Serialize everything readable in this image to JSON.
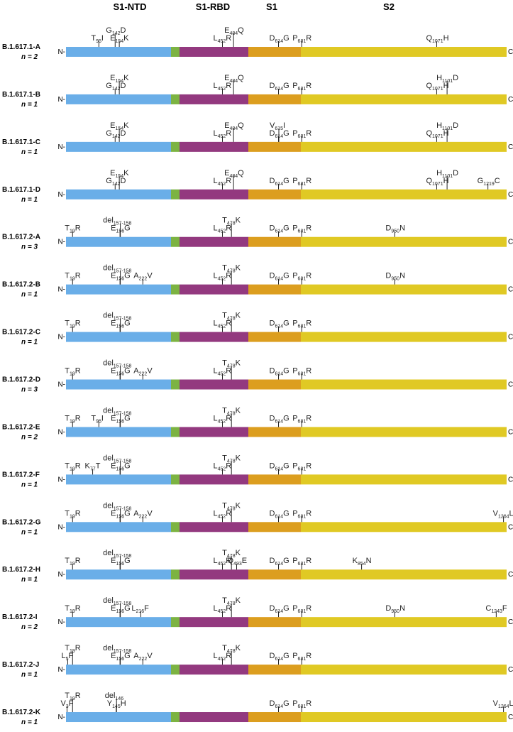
{
  "headers": [
    "S1-NTD",
    "S1-RBD",
    "S1",
    "S2"
  ],
  "ends": [
    "N-",
    "C"
  ],
  "rows": [
    {
      "name": "B.1.617.1-A",
      "n": "n = 2",
      "mutations": [
        {
          "from": "T",
          "pos": "95",
          "to": "I"
        },
        {
          "from": "G",
          "pos": "142",
          "to": "D"
        },
        {
          "from": "E",
          "pos": "154",
          "to": "K"
        },
        {
          "from": "L",
          "pos": "452",
          "to": "R"
        },
        {
          "from": "E",
          "pos": "484",
          "to": "Q"
        },
        {
          "from": "D",
          "pos": "614",
          "to": "G"
        },
        {
          "from": "P",
          "pos": "681",
          "to": "R"
        },
        {
          "from": "Q",
          "pos": "1071",
          "to": "H"
        }
      ]
    },
    {
      "name": "B.1.617.1-B",
      "n": "n = 1",
      "mutations": [
        {
          "from": "G",
          "pos": "142",
          "to": "D"
        },
        {
          "from": "E",
          "pos": "154",
          "to": "K"
        },
        {
          "from": "L",
          "pos": "452",
          "to": "R"
        },
        {
          "from": "E",
          "pos": "484",
          "to": "Q"
        },
        {
          "from": "D",
          "pos": "614",
          "to": "G"
        },
        {
          "from": "P",
          "pos": "681",
          "to": "R"
        },
        {
          "from": "Q",
          "pos": "1071",
          "to": "H"
        },
        {
          "from": "H",
          "pos": "1101",
          "to": "D"
        }
      ]
    },
    {
      "name": "B.1.617.1-C",
      "n": "n = 1",
      "mutations": [
        {
          "from": "G",
          "pos": "142",
          "to": "D"
        },
        {
          "from": "E",
          "pos": "154",
          "to": "K"
        },
        {
          "from": "L",
          "pos": "452",
          "to": "R"
        },
        {
          "from": "E",
          "pos": "484",
          "to": "Q"
        },
        {
          "from": "D",
          "pos": "614",
          "to": "G"
        },
        {
          "from": "V",
          "pos": "615",
          "to": "I"
        },
        {
          "from": "P",
          "pos": "681",
          "to": "R"
        },
        {
          "from": "Q",
          "pos": "1071",
          "to": "H"
        },
        {
          "from": "H",
          "pos": "1101",
          "to": "D"
        }
      ]
    },
    {
      "name": "B.1.617.1-D",
      "n": "n = 1",
      "mutations": [
        {
          "from": "G",
          "pos": "142",
          "to": "D"
        },
        {
          "from": "E",
          "pos": "154",
          "to": "K"
        },
        {
          "from": "L",
          "pos": "452",
          "to": "R"
        },
        {
          "from": "E",
          "pos": "484",
          "to": "Q"
        },
        {
          "from": "D",
          "pos": "614",
          "to": "G"
        },
        {
          "from": "P",
          "pos": "681",
          "to": "R"
        },
        {
          "from": "Q",
          "pos": "1071",
          "to": "H"
        },
        {
          "from": "H",
          "pos": "1101",
          "to": "D"
        },
        {
          "from": "G",
          "pos": "1219",
          "to": "C"
        }
      ]
    },
    {
      "name": "B.1.617.2-A",
      "n": "n = 3",
      "mutations": [
        {
          "from": "T",
          "pos": "19",
          "to": "R"
        },
        {
          "from": "E",
          "pos": "156",
          "to": "G"
        },
        {
          "from": "del",
          "pos": "157-158"
        },
        {
          "from": "L",
          "pos": "452",
          "to": "R"
        },
        {
          "from": "T",
          "pos": "478",
          "to": "K"
        },
        {
          "from": "D",
          "pos": "614",
          "to": "G"
        },
        {
          "from": "P",
          "pos": "681",
          "to": "R"
        },
        {
          "from": "D",
          "pos": "950",
          "to": "N"
        }
      ]
    },
    {
      "name": "B.1.617.2-B",
      "n": "n = 1",
      "mutations": [
        {
          "from": "T",
          "pos": "19",
          "to": "R"
        },
        {
          "from": "E",
          "pos": "156",
          "to": "G"
        },
        {
          "from": "del",
          "pos": "157-158"
        },
        {
          "from": "A",
          "pos": "222",
          "to": "V"
        },
        {
          "from": "L",
          "pos": "452",
          "to": "R"
        },
        {
          "from": "T",
          "pos": "478",
          "to": "K"
        },
        {
          "from": "D",
          "pos": "614",
          "to": "G"
        },
        {
          "from": "P",
          "pos": "681",
          "to": "R"
        },
        {
          "from": "D",
          "pos": "950",
          "to": "N"
        }
      ]
    },
    {
      "name": "B.1.617.2-C",
      "n": "n = 1",
      "mutations": [
        {
          "from": "T",
          "pos": "19",
          "to": "R"
        },
        {
          "from": "E",
          "pos": "156",
          "to": "G"
        },
        {
          "from": "del",
          "pos": "157-158"
        },
        {
          "from": "L",
          "pos": "452",
          "to": "R"
        },
        {
          "from": "T",
          "pos": "478",
          "to": "K"
        },
        {
          "from": "D",
          "pos": "614",
          "to": "G"
        },
        {
          "from": "P",
          "pos": "681",
          "to": "R"
        }
      ]
    },
    {
      "name": "B.1.617.2-D",
      "n": "n = 3",
      "mutations": [
        {
          "from": "T",
          "pos": "19",
          "to": "R"
        },
        {
          "from": "E",
          "pos": "156",
          "to": "G"
        },
        {
          "from": "del",
          "pos": "157-158"
        },
        {
          "from": "A",
          "pos": "222",
          "to": "V"
        },
        {
          "from": "L",
          "pos": "452",
          "to": "R"
        },
        {
          "from": "T",
          "pos": "478",
          "to": "K"
        },
        {
          "from": "D",
          "pos": "614",
          "to": "G"
        },
        {
          "from": "P",
          "pos": "681",
          "to": "R"
        }
      ]
    },
    {
      "name": "B.1.617.2-E",
      "n": "n = 2",
      "mutations": [
        {
          "from": "T",
          "pos": "19",
          "to": "R"
        },
        {
          "from": "T",
          "pos": "95",
          "to": "I"
        },
        {
          "from": "E",
          "pos": "156",
          "to": "G"
        },
        {
          "from": "del",
          "pos": "157-158"
        },
        {
          "from": "L",
          "pos": "452",
          "to": "R"
        },
        {
          "from": "T",
          "pos": "478",
          "to": "K"
        },
        {
          "from": "D",
          "pos": "614",
          "to": "G"
        },
        {
          "from": "P",
          "pos": "681",
          "to": "R"
        }
      ]
    },
    {
      "name": "B.1.617.2-F",
      "n": "n = 1",
      "mutations": [
        {
          "from": "T",
          "pos": "19",
          "to": "R"
        },
        {
          "from": "K",
          "pos": "77",
          "to": "T"
        },
        {
          "from": "E",
          "pos": "156",
          "to": "G"
        },
        {
          "from": "del",
          "pos": "157-158"
        },
        {
          "from": "L",
          "pos": "452",
          "to": "R"
        },
        {
          "from": "T",
          "pos": "478",
          "to": "K"
        },
        {
          "from": "D",
          "pos": "614",
          "to": "G"
        },
        {
          "from": "P",
          "pos": "681",
          "to": "R"
        }
      ]
    },
    {
      "name": "B.1.617.2-G",
      "n": "n = 1",
      "mutations": [
        {
          "from": "T",
          "pos": "19",
          "to": "R"
        },
        {
          "from": "E",
          "pos": "156",
          "to": "G"
        },
        {
          "from": "del",
          "pos": "157-158"
        },
        {
          "from": "A",
          "pos": "222",
          "to": "V"
        },
        {
          "from": "L",
          "pos": "452",
          "to": "R"
        },
        {
          "from": "T",
          "pos": "478",
          "to": "K"
        },
        {
          "from": "D",
          "pos": "614",
          "to": "G"
        },
        {
          "from": "P",
          "pos": "681",
          "to": "R"
        },
        {
          "from": "V",
          "pos": "1264",
          "to": "L"
        }
      ]
    },
    {
      "name": "B.1.617.2-H",
      "n": "n = 1",
      "mutations": [
        {
          "from": "T",
          "pos": "19",
          "to": "R"
        },
        {
          "from": "E",
          "pos": "156",
          "to": "G"
        },
        {
          "from": "del",
          "pos": "157-158"
        },
        {
          "from": "L",
          "pos": "452",
          "to": "R"
        },
        {
          "from": "T",
          "pos": "478",
          "to": "K"
        },
        {
          "from": "Q",
          "pos": "493",
          "to": "E"
        },
        {
          "from": "D",
          "pos": "614",
          "to": "G"
        },
        {
          "from": "P",
          "pos": "681",
          "to": "R"
        },
        {
          "from": "K",
          "pos": "854",
          "to": "N"
        }
      ]
    },
    {
      "name": "B.1.617.2-I",
      "n": "n = 2",
      "mutations": [
        {
          "from": "T",
          "pos": "19",
          "to": "R"
        },
        {
          "from": "E",
          "pos": "156",
          "to": "G"
        },
        {
          "from": "del",
          "pos": "157-158"
        },
        {
          "from": "L",
          "pos": "216",
          "to": "F"
        },
        {
          "from": "L",
          "pos": "452",
          "to": "R"
        },
        {
          "from": "T",
          "pos": "478",
          "to": "K"
        },
        {
          "from": "D",
          "pos": "614",
          "to": "G"
        },
        {
          "from": "P",
          "pos": "681",
          "to": "R"
        },
        {
          "from": "D",
          "pos": "950",
          "to": "N"
        },
        {
          "from": "C",
          "pos": "1243",
          "to": "F"
        }
      ]
    },
    {
      "name": "B.1.617.2-J",
      "n": "n = 1",
      "mutations": [
        {
          "from": "L",
          "pos": "5",
          "to": "F"
        },
        {
          "from": "T",
          "pos": "19",
          "to": "R"
        },
        {
          "from": "E",
          "pos": "156",
          "to": "G"
        },
        {
          "from": "del",
          "pos": "157-158"
        },
        {
          "from": "A",
          "pos": "222",
          "to": "V"
        },
        {
          "from": "L",
          "pos": "452",
          "to": "R"
        },
        {
          "from": "T",
          "pos": "478",
          "to": "K"
        },
        {
          "from": "D",
          "pos": "614",
          "to": "G"
        },
        {
          "from": "P",
          "pos": "681",
          "to": "R"
        }
      ]
    },
    {
      "name": "B.1.617.2-K",
      "n": "n = 1",
      "mutations": [
        {
          "from": "V",
          "pos": "3",
          "to": "F"
        },
        {
          "from": "T",
          "pos": "19",
          "to": "R"
        },
        {
          "from": "Y",
          "pos": "145",
          "to": "H"
        },
        {
          "from": "del",
          "pos": "146"
        },
        {
          "from": "D",
          "pos": "614",
          "to": "G"
        },
        {
          "from": "P",
          "pos": "681",
          "to": "R"
        },
        {
          "from": "V",
          "pos": "1264",
          "to": "L"
        }
      ]
    }
  ]
}
